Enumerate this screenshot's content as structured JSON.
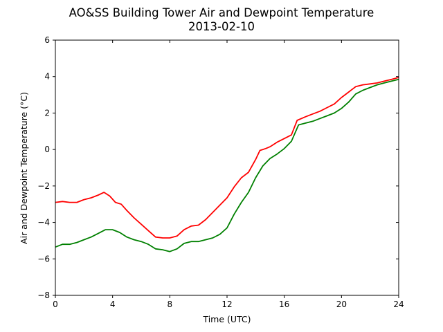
{
  "chart_data": {
    "type": "line",
    "title": "AO&SS Building Tower Air and Dewpoint Temperature",
    "subtitle": "2013-02-10",
    "xlabel": "Time (UTC)",
    "ylabel": "Air and Dewpoint Temperature (°C)",
    "xlim": [
      0,
      24
    ],
    "ylim": [
      -8,
      6
    ],
    "xticks": [
      0,
      4,
      8,
      12,
      16,
      20,
      24
    ],
    "yticks": [
      -8,
      -6,
      -4,
      -2,
      0,
      2,
      4,
      6
    ],
    "grid": false,
    "legend": "none",
    "series": [
      {
        "color": "#ff0000",
        "x": [
          0,
          0.5,
          1,
          1.5,
          2,
          2.5,
          3,
          3.4,
          3.8,
          4.2,
          4.6,
          5,
          5.5,
          6,
          6.5,
          7,
          7.5,
          8,
          8.5,
          9,
          9.5,
          10,
          10.5,
          11,
          11.5,
          12,
          12.5,
          13,
          13.5,
          14,
          14.3,
          14.7,
          15,
          15.5,
          16,
          16.5,
          16.9,
          17.5,
          18,
          18.5,
          19,
          19.5,
          20,
          20.5,
          21,
          21.5,
          22,
          22.5,
          23,
          23.5,
          24
        ],
        "y": [
          -2.9,
          -2.85,
          -2.9,
          -2.9,
          -2.75,
          -2.65,
          -2.5,
          -2.35,
          -2.55,
          -2.9,
          -3.0,
          -3.35,
          -3.75,
          -4.1,
          -4.45,
          -4.8,
          -4.85,
          -4.85,
          -4.75,
          -4.4,
          -4.2,
          -4.15,
          -3.85,
          -3.45,
          -3.05,
          -2.65,
          -2.05,
          -1.55,
          -1.25,
          -0.55,
          -0.05,
          0.05,
          0.15,
          0.4,
          0.6,
          0.8,
          1.6,
          1.8,
          1.95,
          2.1,
          2.3,
          2.5,
          2.85,
          3.15,
          3.45,
          3.55,
          3.6,
          3.65,
          3.75,
          3.85,
          3.95
        ]
      },
      {
        "color": "#008000",
        "x": [
          0,
          0.5,
          1,
          1.5,
          2,
          2.5,
          3,
          3.5,
          4,
          4.5,
          5,
          5.5,
          6,
          6.5,
          7,
          7.5,
          8,
          8.5,
          9,
          9.5,
          10,
          10.5,
          11,
          11.5,
          12,
          12.5,
          13,
          13.5,
          14,
          14.5,
          15,
          15.5,
          16,
          16.5,
          17,
          17.5,
          18,
          18.5,
          19,
          19.5,
          20,
          20.5,
          21,
          21.5,
          22,
          22.5,
          23,
          23.5,
          24
        ],
        "y": [
          -5.35,
          -5.2,
          -5.2,
          -5.1,
          -4.95,
          -4.8,
          -4.6,
          -4.4,
          -4.4,
          -4.55,
          -4.8,
          -4.95,
          -5.05,
          -5.2,
          -5.45,
          -5.5,
          -5.6,
          -5.45,
          -5.15,
          -5.05,
          -5.05,
          -4.95,
          -4.85,
          -4.65,
          -4.3,
          -3.55,
          -2.9,
          -2.35,
          -1.55,
          -0.9,
          -0.5,
          -0.25,
          0.05,
          0.45,
          1.35,
          1.45,
          1.55,
          1.7,
          1.85,
          2.0,
          2.25,
          2.6,
          3.05,
          3.25,
          3.4,
          3.55,
          3.65,
          3.75,
          3.85
        ]
      }
    ]
  }
}
